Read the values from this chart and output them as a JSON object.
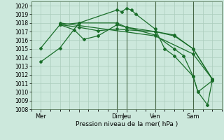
{
  "background_color": "#cce8dc",
  "grid_color": "#aaccbb",
  "line_color": "#1a6e2a",
  "xlabel": "Pression niveau de la mer( hPa )",
  "ylim": [
    1008,
    1020.5
  ],
  "yticks": [
    1008,
    1009,
    1010,
    1011,
    1012,
    1013,
    1014,
    1015,
    1016,
    1017,
    1018,
    1019,
    1020
  ],
  "xlim": [
    0,
    20
  ],
  "xtick_positions": [
    1,
    5,
    9,
    10,
    13,
    17
  ],
  "xtick_labels": [
    "Mer",
    "",
    "Dim",
    "Jeu",
    "Ven",
    "Sam"
  ],
  "vline_positions": [
    9,
    10,
    13,
    17
  ],
  "lines": [
    {
      "x": [
        1,
        3,
        5,
        9,
        9.5,
        10,
        10.5,
        11,
        13,
        14,
        15,
        17,
        17.5,
        19
      ],
      "y": [
        1013.5,
        1015.1,
        1018.0,
        1019.5,
        1019.3,
        1019.7,
        1019.5,
        1019.0,
        1017.3,
        1015.0,
        1014.2,
        1011.8,
        1010.0,
        1011.3
      ]
    },
    {
      "x": [
        1,
        3,
        5,
        9,
        10,
        13,
        15,
        17,
        19
      ],
      "y": [
        1015.1,
        1017.8,
        1018.0,
        1018.0,
        1017.5,
        1017.0,
        1016.5,
        1015.0,
        1011.5
      ]
    },
    {
      "x": [
        3,
        4.5,
        5.5,
        7,
        9,
        10,
        13,
        15,
        16,
        17,
        17.5,
        18.5,
        19
      ],
      "y": [
        1017.8,
        1017.2,
        1016.1,
        1016.5,
        1017.8,
        1017.5,
        1016.6,
        1015.0,
        1014.2,
        1011.8,
        1010.0,
        1008.5,
        1011.3
      ]
    },
    {
      "x": [
        3,
        5,
        7,
        9,
        10,
        13,
        15,
        17,
        19
      ],
      "y": [
        1017.8,
        1017.5,
        1017.1,
        1017.3,
        1017.2,
        1017.0,
        1016.6,
        1015.0,
        1011.5
      ]
    },
    {
      "x": [
        3,
        13,
        17,
        19
      ],
      "y": [
        1018.0,
        1016.5,
        1014.4,
        1011.5
      ]
    }
  ]
}
